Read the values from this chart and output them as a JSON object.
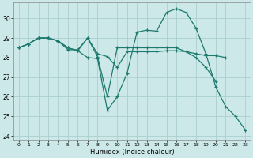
{
  "xlabel": "Humidex (Indice chaleur)",
  "bg_color": "#cce8e8",
  "grid_color": "#aad0d0",
  "line_color": "#1e7a6e",
  "xlim": [
    -0.5,
    23.5
  ],
  "ylim": [
    23.8,
    30.8
  ],
  "yticks": [
    24,
    25,
    26,
    27,
    28,
    29,
    30
  ],
  "xticks": [
    0,
    1,
    2,
    3,
    4,
    5,
    6,
    7,
    8,
    9,
    10,
    11,
    12,
    13,
    14,
    15,
    16,
    17,
    18,
    19,
    20,
    21,
    22,
    23
  ],
  "line1": [
    28.5,
    28.7,
    29.0,
    29.0,
    28.85,
    28.5,
    28.35,
    28.0,
    27.95,
    25.3,
    26.0,
    27.2,
    29.3,
    29.4,
    29.35,
    30.3,
    30.5,
    30.3,
    29.5,
    28.2,
    26.5,
    25.5,
    25.0,
    24.3
  ],
  "line2_x": [
    0,
    1,
    2,
    3,
    4,
    5,
    6,
    7,
    8,
    9,
    10,
    11,
    12,
    13,
    14,
    15,
    16,
    17,
    18,
    19,
    20,
    21
  ],
  "line2_y": [
    28.5,
    28.7,
    29.0,
    29.0,
    28.85,
    28.5,
    28.35,
    29.0,
    28.2,
    28.05,
    27.5,
    28.3,
    28.3,
    28.3,
    28.3,
    28.35,
    28.35,
    28.3,
    28.2,
    28.1,
    28.1,
    28.0
  ],
  "line3_x": [
    0,
    1,
    2,
    3,
    4,
    5,
    6,
    7,
    8,
    9,
    10,
    11,
    12,
    13,
    14,
    15,
    16,
    17,
    18,
    19,
    20
  ],
  "line3_y": [
    28.5,
    28.7,
    29.0,
    29.0,
    28.85,
    28.4,
    28.4,
    29.0,
    28.05,
    26.0,
    28.5,
    28.5,
    28.5,
    28.5,
    28.5,
    28.5,
    28.5,
    28.3,
    28.0,
    27.5,
    26.8
  ]
}
